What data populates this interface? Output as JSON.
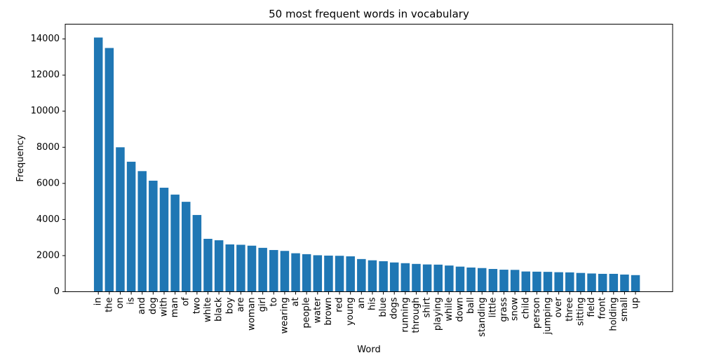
{
  "chart_data": {
    "type": "bar",
    "title": "50 most frequent words in vocabulary",
    "xlabel": "Word",
    "ylabel": "Frequency",
    "ylim": [
      0,
      14820
    ],
    "yticks": [
      0,
      2000,
      4000,
      6000,
      8000,
      10000,
      12000,
      14000
    ],
    "bar_color": "#1f77b4",
    "grid": false,
    "categories": [
      "in",
      "the",
      "on",
      "is",
      "and",
      "dog",
      "with",
      "man",
      "of",
      "two",
      "white",
      "black",
      "boy",
      "are",
      "woman",
      "girl",
      "to",
      "wearing",
      "at",
      "people",
      "water",
      "brown",
      "red",
      "young",
      "an",
      "his",
      "blue",
      "dogs",
      "running",
      "through",
      "shirt",
      "playing",
      "while",
      "down",
      "ball",
      "standing",
      "little",
      "grass",
      "snow",
      "child",
      "person",
      "jumping",
      "over",
      "three",
      "sitting",
      "field",
      "front",
      "holding",
      "small",
      "up"
    ],
    "values": [
      14080,
      13500,
      8000,
      7200,
      6680,
      6150,
      5760,
      5380,
      4980,
      4250,
      2930,
      2850,
      2620,
      2600,
      2550,
      2430,
      2310,
      2260,
      2130,
      2080,
      2020,
      2000,
      1990,
      1960,
      1810,
      1740,
      1690,
      1620,
      1580,
      1540,
      1510,
      1500,
      1450,
      1390,
      1340,
      1310,
      1260,
      1220,
      1210,
      1120,
      1110,
      1100,
      1080,
      1070,
      1040,
      1010,
      990,
      990,
      950,
      920
    ]
  }
}
